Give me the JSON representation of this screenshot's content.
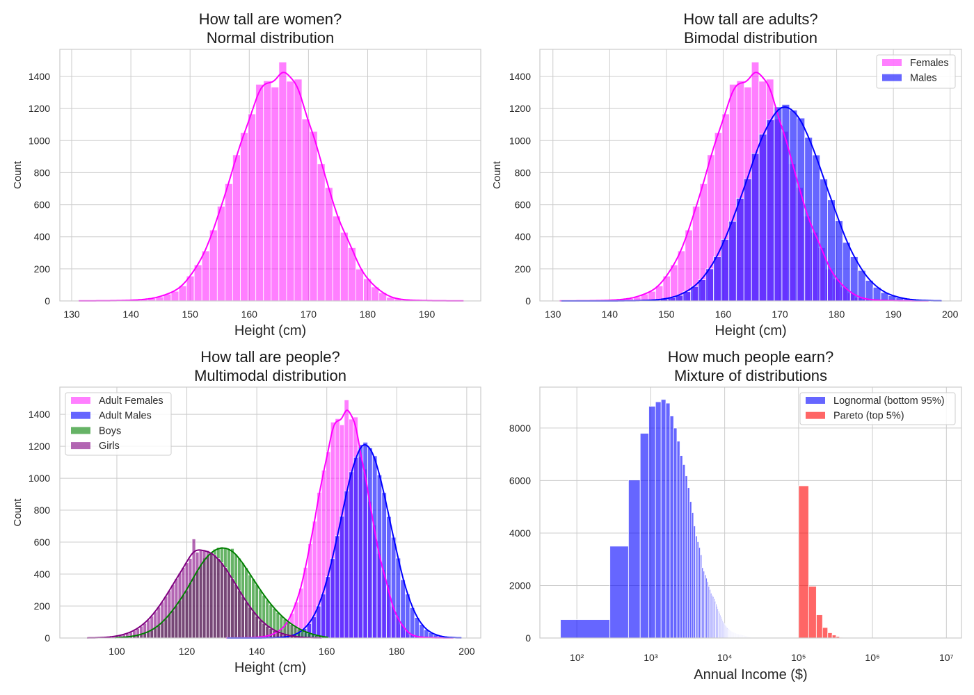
{
  "chart_data": [
    {
      "type": "bar",
      "title_line1": "How tall are women?",
      "title_line2": "Normal distribution",
      "xlabel": "Height (cm)",
      "ylabel": "Count",
      "xscale": "linear",
      "xlim": [
        128.0,
        199.1
      ],
      "ylim": [
        0,
        1569
      ],
      "xticks": [
        130,
        140,
        150,
        160,
        170,
        180,
        190
      ],
      "xtick_labels": [
        "130",
        "140",
        "150",
        "160",
        "170",
        "180",
        "190"
      ],
      "yticks": [
        0,
        200,
        400,
        600,
        800,
        1000,
        1200,
        1400
      ],
      "ytick_labels": [
        "0",
        "200",
        "400",
        "600",
        "800",
        "1000",
        "1200",
        "1400"
      ],
      "grid": true,
      "legend": null,
      "series": [
        {
          "start": 131.2,
          "bin_width": 1.3,
          "color": "#ff00ff",
          "alpha": 0.5,
          "kde": true,
          "kde_bw": 1.0,
          "counts": [
            1,
            0,
            1,
            1,
            2,
            2,
            3,
            6,
            9,
            15,
            25,
            43,
            60,
            94,
            155,
            225,
            312,
            442,
            590,
            731,
            911,
            1050,
            1166,
            1351,
            1373,
            1334,
            1490,
            1370,
            1383,
            1135,
            1057,
            855,
            707,
            529,
            428,
            332,
            199,
            138,
            87,
            51,
            22,
            12,
            6,
            4,
            2,
            2,
            1,
            1,
            0,
            1
          ]
        }
      ]
    },
    {
      "type": "bar",
      "title_line1": "How tall are adults?",
      "title_line2": "Bimodal distribution",
      "xlabel": "Height (cm)",
      "ylabel": "Count",
      "xscale": "linear",
      "xlim": [
        127.7,
        202.0
      ],
      "ylim": [
        0,
        1569
      ],
      "xticks": [
        130,
        140,
        150,
        160,
        170,
        180,
        190,
        200
      ],
      "xtick_labels": [
        "130",
        "140",
        "150",
        "160",
        "170",
        "180",
        "190",
        "200"
      ],
      "yticks": [
        0,
        200,
        400,
        600,
        800,
        1000,
        1200,
        1400
      ],
      "ytick_labels": [
        "0",
        "200",
        "400",
        "600",
        "800",
        "1000",
        "1200",
        "1400"
      ],
      "grid": true,
      "legend": "top-right",
      "series": [
        {
          "name": "Females",
          "start": 131.2,
          "bin_width": 1.3,
          "color": "#ff00ff",
          "alpha": 0.5,
          "kde": true,
          "kde_bw": 1.0,
          "counts": [
            1,
            0,
            1,
            1,
            2,
            2,
            3,
            6,
            9,
            15,
            25,
            43,
            60,
            94,
            155,
            225,
            312,
            442,
            590,
            731,
            911,
            1050,
            1166,
            1351,
            1373,
            1334,
            1490,
            1370,
            1383,
            1135,
            1057,
            855,
            707,
            529,
            428,
            332,
            199,
            138,
            87,
            51,
            22,
            12,
            6,
            4,
            2,
            2,
            1,
            1,
            0,
            1
          ]
        },
        {
          "name": "Males",
          "start": 131.5,
          "bin_width": 1.34,
          "color": "#0000ff",
          "alpha": 0.6,
          "kde": true,
          "kde_bw": 1.1,
          "counts": [
            0,
            0,
            0,
            0,
            0,
            0,
            0,
            0,
            1,
            1,
            2,
            4,
            6,
            12,
            20,
            35,
            58,
            90,
            132,
            200,
            275,
            384,
            497,
            640,
            762,
            920,
            1040,
            1130,
            1210,
            1225,
            1190,
            1140,
            1020,
            910,
            760,
            630,
            500,
            365,
            275,
            190,
            128,
            85,
            52,
            33,
            20,
            11,
            6,
            3,
            2,
            1
          ]
        }
      ]
    },
    {
      "type": "bar",
      "title_line1": "How tall are people?",
      "title_line2": "Multimodal distribution",
      "xlabel": "Height (cm)",
      "ylabel": "Count",
      "xscale": "linear",
      "xlim": [
        83.7,
        204.0
      ],
      "ylim": [
        0,
        1570
      ],
      "xticks": [
        100,
        120,
        140,
        160,
        180,
        200
      ],
      "xtick_labels": [
        "100",
        "120",
        "140",
        "160",
        "180",
        "200"
      ],
      "yticks": [
        0,
        200,
        400,
        600,
        800,
        1000,
        1200,
        1400
      ],
      "ytick_labels": [
        "0",
        "200",
        "400",
        "600",
        "800",
        "1000",
        "1200",
        "1400"
      ],
      "grid": true,
      "legend": "top-left",
      "series": [
        {
          "name": "Adult Females",
          "start": 131.2,
          "bin_width": 1.3,
          "color": "#ff00ff",
          "alpha": 0.5,
          "kde": true,
          "kde_bw": 1.0,
          "counts": [
            1,
            0,
            1,
            1,
            2,
            2,
            3,
            6,
            9,
            15,
            25,
            43,
            60,
            94,
            155,
            225,
            312,
            442,
            590,
            731,
            911,
            1050,
            1166,
            1351,
            1373,
            1334,
            1490,
            1370,
            1383,
            1135,
            1057,
            855,
            707,
            529,
            428,
            332,
            199,
            138,
            87,
            51,
            22,
            12,
            6,
            4,
            2,
            2,
            1,
            1,
            0,
            1
          ]
        },
        {
          "name": "Adult Males",
          "start": 131.5,
          "bin_width": 1.34,
          "color": "#0000ff",
          "alpha": 0.6,
          "kde": true,
          "kde_bw": 1.1,
          "counts": [
            0,
            0,
            0,
            0,
            0,
            0,
            0,
            0,
            1,
            1,
            2,
            4,
            6,
            12,
            20,
            35,
            58,
            90,
            132,
            200,
            275,
            384,
            497,
            640,
            762,
            920,
            1040,
            1130,
            1210,
            1225,
            1190,
            1140,
            1020,
            910,
            760,
            630,
            500,
            365,
            275,
            190,
            128,
            85,
            52,
            33,
            20,
            11,
            6,
            3,
            2,
            1
          ]
        },
        {
          "name": "Boys",
          "start": 99.5,
          "bin_width": 1.0,
          "color": "#008000",
          "alpha": 0.6,
          "kde": true,
          "kde_bw": 1.6,
          "counts": [
            2,
            3,
            5,
            6,
            9,
            12,
            17,
            22,
            29,
            38,
            48,
            62,
            77,
            96,
            117,
            150,
            170,
            201,
            234,
            270,
            295,
            346,
            384,
            421,
            457,
            500,
            516,
            539,
            556,
            567,
            570,
            567,
            558,
            560,
            525,
            500,
            470,
            440,
            395,
            370,
            335,
            300,
            268,
            238,
            210,
            185,
            160,
            138,
            118,
            100,
            84,
            70,
            57,
            46,
            37,
            29,
            22,
            16,
            12,
            8,
            5
          ]
        },
        {
          "name": "Girls",
          "start": 91.5,
          "bin_width": 1.0,
          "color": "#800080",
          "alpha": 0.6,
          "kde": true,
          "kde_bw": 1.6,
          "counts": [
            1,
            1,
            1,
            2,
            3,
            4,
            6,
            8,
            12,
            16,
            21,
            28,
            36,
            47,
            59,
            74,
            92,
            113,
            137,
            164,
            194,
            226,
            261,
            296,
            334,
            371,
            406,
            441,
            471,
            498,
            620,
            537,
            547,
            550,
            547,
            537,
            520,
            498,
            471,
            441,
            406,
            371,
            334,
            296,
            261,
            226,
            194,
            164,
            137,
            113,
            92,
            74,
            59,
            47,
            36,
            28,
            21,
            16,
            12,
            8,
            6,
            4,
            3,
            2,
            1,
            1,
            1
          ]
        }
      ]
    },
    {
      "type": "bar",
      "title_line1": "How much people earn?",
      "title_line2": "Mixture of distributions",
      "xlabel": "Annual Income ($)",
      "ylabel": "",
      "xscale": "log",
      "xlim": [
        31.6,
        16000000
      ],
      "ylim": [
        0,
        9560
      ],
      "xticks": [
        100,
        1000,
        10000,
        100000,
        1000000,
        10000000
      ],
      "xtick_labels": [
        "10²",
        "10³",
        "10⁴",
        "10⁵",
        "10⁶",
        "10⁷"
      ],
      "yticks": [
        0,
        2000,
        4000,
        6000,
        8000
      ],
      "ytick_labels": [
        "0",
        "2000",
        "4000",
        "6000",
        "8000"
      ],
      "grid": true,
      "legend": "top-right",
      "series": [
        {
          "name": "Lognormal (bottom 95%)",
          "start": 60,
          "bin_width": 220,
          "color": "#0000ff",
          "alpha": 0.6,
          "kde": false,
          "counts": [
            700,
            3500,
            6020,
            7800,
            8830,
            9000,
            9090,
            8950,
            8460,
            8000,
            7500,
            6950,
            6610,
            6180,
            5730,
            5200,
            4780,
            4270,
            3890,
            3670,
            3450,
            3170,
            2680,
            2550,
            2410,
            2280,
            2150,
            1970,
            1850,
            1710,
            1630,
            1580,
            1500,
            1400,
            1300,
            1210,
            1120,
            1030,
            950,
            870,
            800,
            730,
            660,
            610,
            560,
            520,
            480,
            440,
            410,
            380,
            350,
            330,
            310,
            290,
            270,
            260,
            250,
            235,
            225,
            215,
            205,
            195,
            188,
            180,
            173,
            166,
            160,
            154,
            149,
            144,
            140,
            136,
            132,
            128,
            125,
            122,
            119,
            117,
            115,
            112,
            110,
            105,
            100,
            95,
            90,
            85,
            80,
            76,
            72,
            68,
            64,
            60,
            56,
            52,
            48,
            45,
            42,
            39,
            36,
            33,
            30,
            27,
            24,
            21,
            18,
            15,
            12,
            9,
            6,
            4,
            2
          ]
        },
        {
          "name": "Pareto (top 5%)",
          "start": 100000,
          "bin_width": 37000,
          "color": "#ff0000",
          "alpha": 0.6,
          "kde": false,
          "counts": [
            5800,
            1970,
            885,
            400,
            200,
            115,
            55,
            25,
            12,
            6,
            3,
            2,
            1
          ]
        }
      ]
    }
  ]
}
